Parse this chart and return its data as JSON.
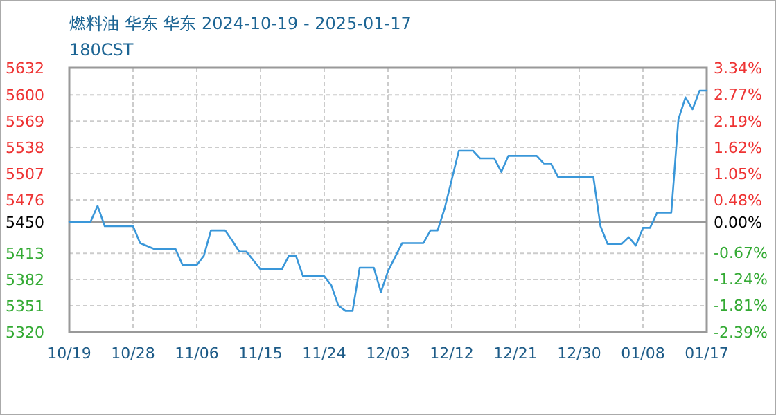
{
  "chart_data": {
    "type": "line",
    "title": "燃料油 华东 华东 2024-10-19 - 2025-01-17",
    "subtitle": "180CST",
    "x": [
      "2024-10-19",
      "2024-10-22",
      "2024-10-23",
      "2024-10-24",
      "2024-10-28",
      "2024-10-29",
      "2024-10-31",
      "2024-11-03",
      "2024-11-04",
      "2024-11-06",
      "2024-11-07",
      "2024-11-08",
      "2024-11-10",
      "2024-11-11",
      "2024-11-12",
      "2024-11-13",
      "2024-11-15",
      "2024-11-18",
      "2024-11-19",
      "2024-11-20",
      "2024-11-21",
      "2024-11-24",
      "2024-11-25",
      "2024-11-26",
      "2024-11-27",
      "2024-11-28",
      "2024-11-29",
      "2024-12-01",
      "2024-12-02",
      "2024-12-03",
      "2024-12-05",
      "2024-12-08",
      "2024-12-09",
      "2024-12-10",
      "2024-12-11",
      "2024-12-13",
      "2024-12-15",
      "2024-12-16",
      "2024-12-18",
      "2024-12-19",
      "2024-12-20",
      "2024-12-24",
      "2024-12-25",
      "2024-12-26",
      "2024-12-27",
      "2025-01-01",
      "2025-01-02",
      "2025-01-03",
      "2025-01-05",
      "2025-01-06",
      "2025-01-07",
      "2025-01-08",
      "2025-01-09",
      "2025-01-10",
      "2025-01-12",
      "2025-01-13",
      "2025-01-14",
      "2025-01-15",
      "2025-01-16",
      "2025-01-17"
    ],
    "series": [
      {
        "color": "#3a97d9",
        "values": [
          5450,
          5450,
          5469,
          5445,
          5445,
          5425,
          5418,
          5418,
          5399,
          5399,
          5410,
          5440,
          5440,
          5428,
          5415,
          5415,
          5394,
          5394,
          5410,
          5410,
          5386,
          5386,
          5375,
          5351,
          5345,
          5345,
          5396,
          5396,
          5367,
          5392,
          5425,
          5425,
          5440,
          5440,
          5466,
          5534,
          5534,
          5525,
          5525,
          5509,
          5528,
          5528,
          5519,
          5519,
          5503,
          5503,
          5445,
          5424,
          5424,
          5432,
          5422,
          5443,
          5443,
          5461,
          5461,
          5571,
          5597,
          5583,
          5605,
          5605
        ]
      }
    ],
    "xlim": [
      "2024-10-19",
      "2025-01-17"
    ],
    "xticks": [
      {
        "value": "2024-10-19",
        "label": "10/19"
      },
      {
        "value": "2024-10-28",
        "label": "10/28"
      },
      {
        "value": "2024-11-06",
        "label": "11/06"
      },
      {
        "value": "2024-11-15",
        "label": "11/15"
      },
      {
        "value": "2024-11-24",
        "label": "11/24"
      },
      {
        "value": "2024-12-03",
        "label": "12/03"
      },
      {
        "value": "2024-12-12",
        "label": "12/12"
      },
      {
        "value": "2024-12-21",
        "label": "12/21"
      },
      {
        "value": "2024-12-30",
        "label": "12/30"
      },
      {
        "value": "2025-01-08",
        "label": "01/08"
      },
      {
        "value": "2025-01-17",
        "label": "01/17"
      }
    ],
    "ylim": [
      5320,
      5632
    ],
    "yticks": [
      5320,
      5351,
      5382,
      5413,
      5450,
      5476,
      5507,
      5538,
      5569,
      5600,
      5632
    ],
    "y2lim": [
      -2.39,
      3.34
    ],
    "y2ticks": [
      {
        "value": -2.39,
        "label": "-2.39%"
      },
      {
        "value": -1.81,
        "label": "-1.81%"
      },
      {
        "value": -1.24,
        "label": "-1.24%"
      },
      {
        "value": -0.67,
        "label": "-0.67%"
      },
      {
        "value": 0,
        "label": "0.00%"
      },
      {
        "value": 0.48,
        "label": "0.48%"
      },
      {
        "value": 1.05,
        "label": "1.05%"
      },
      {
        "value": 1.62,
        "label": "1.62%"
      },
      {
        "value": 2.19,
        "label": "2.19%"
      },
      {
        "value": 2.77,
        "label": "2.77%"
      },
      {
        "value": 3.34,
        "label": "3.34%"
      }
    ],
    "ref_lines": [
      {
        "axis": "y",
        "value": 5450,
        "color": "#999999"
      }
    ],
    "grid": true,
    "marker": "none",
    "line_style": "solid"
  }
}
